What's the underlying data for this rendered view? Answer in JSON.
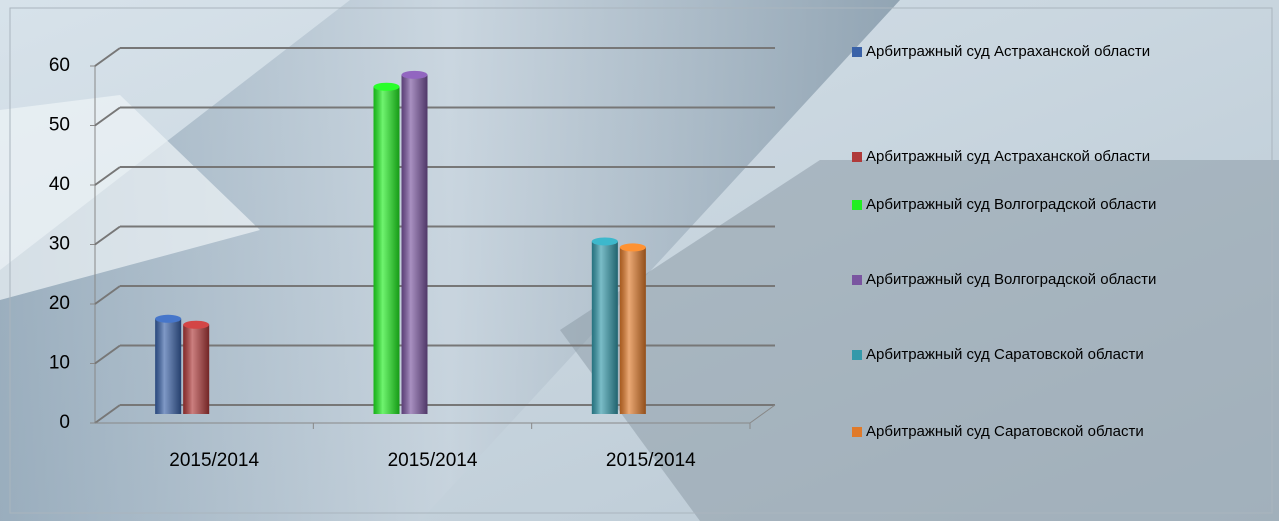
{
  "chart_data": {
    "type": "bar",
    "categories": [
      "2015/2014",
      "2015/2014",
      "2015/2014"
    ],
    "series": [
      {
        "name": "Арбитражный суд Астраханской области",
        "color": "#3a62a8",
        "values": [
          16,
          null,
          null
        ]
      },
      {
        "name": "Арбитражный суд Астраханской области",
        "color": "#b03a3a",
        "values": [
          15,
          null,
          null
        ]
      },
      {
        "name": "Арбитражный суд Волгоградской области",
        "color": "#22ee22",
        "values": [
          null,
          55,
          null
        ]
      },
      {
        "name": "Арбитражный суд Волгоградской области",
        "color": "#7a55a0",
        "values": [
          null,
          57,
          null
        ]
      },
      {
        "name": "Арбитражный суд Саратовской области",
        "color": "#3399aa",
        "values": [
          null,
          null,
          29
        ]
      },
      {
        "name": "Арбитражный суд Саратовской области",
        "color": "#e07a2a",
        "values": [
          null,
          null,
          28
        ]
      }
    ],
    "ylim": [
      0,
      60
    ],
    "yticks": [
      0,
      10,
      20,
      30,
      40,
      50,
      60
    ],
    "grid": true,
    "legend": "right"
  }
}
